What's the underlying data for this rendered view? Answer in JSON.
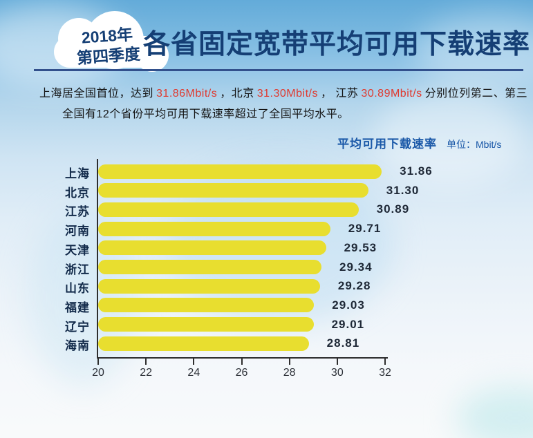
{
  "page": {
    "badge": {
      "line1": "2018年",
      "line2": "第四季度"
    },
    "title": "各省固定宽带平均可用下载速率",
    "intro": {
      "line1_segments": [
        {
          "text": "上海居全国首位，达到",
          "highlight": false
        },
        {
          "text": "31.86Mbit/s",
          "highlight": true
        },
        {
          "text": "，北京",
          "highlight": false
        },
        {
          "text": "31.30Mbit/s",
          "highlight": true
        },
        {
          "text": "， 江苏",
          "highlight": false
        },
        {
          "text": "30.89Mbit/s",
          "highlight": true
        },
        {
          "text": "分别位列第二、第三",
          "highlight": false
        }
      ],
      "line2": "全国有12个省份平均可用下载速率超过了全国平均水平。"
    },
    "chart_caption": {
      "label": "平均可用下载速率",
      "unit": "单位：Mbit/s"
    }
  },
  "colors": {
    "title_navy": "#153f75",
    "accent_red": "#e03a2f",
    "caption_blue": "#1a58a8",
    "bar_yellow": "#e8de2f",
    "axis_dark": "#2e2e2e",
    "separator_blue": "#32508c",
    "label_dark": "#122a4a",
    "value_dark": "#1e2836",
    "text_black": "#141414"
  },
  "chart_data": {
    "type": "bar",
    "orientation": "horizontal",
    "title": "平均可用下载速率",
    "unit": "Mbit/s",
    "categories": [
      "上海",
      "北京",
      "江苏",
      "河南",
      "天津",
      "浙江",
      "山东",
      "福建",
      "辽宁",
      "海南"
    ],
    "values": [
      31.86,
      31.3,
      30.89,
      29.71,
      29.53,
      29.34,
      29.28,
      29.03,
      29.01,
      28.81
    ],
    "xlim": [
      20,
      32
    ],
    "xticks": [
      20,
      22,
      24,
      26,
      28,
      30,
      32
    ],
    "grid": false,
    "legend": false,
    "value_labels": true,
    "value_decimals": 2
  }
}
